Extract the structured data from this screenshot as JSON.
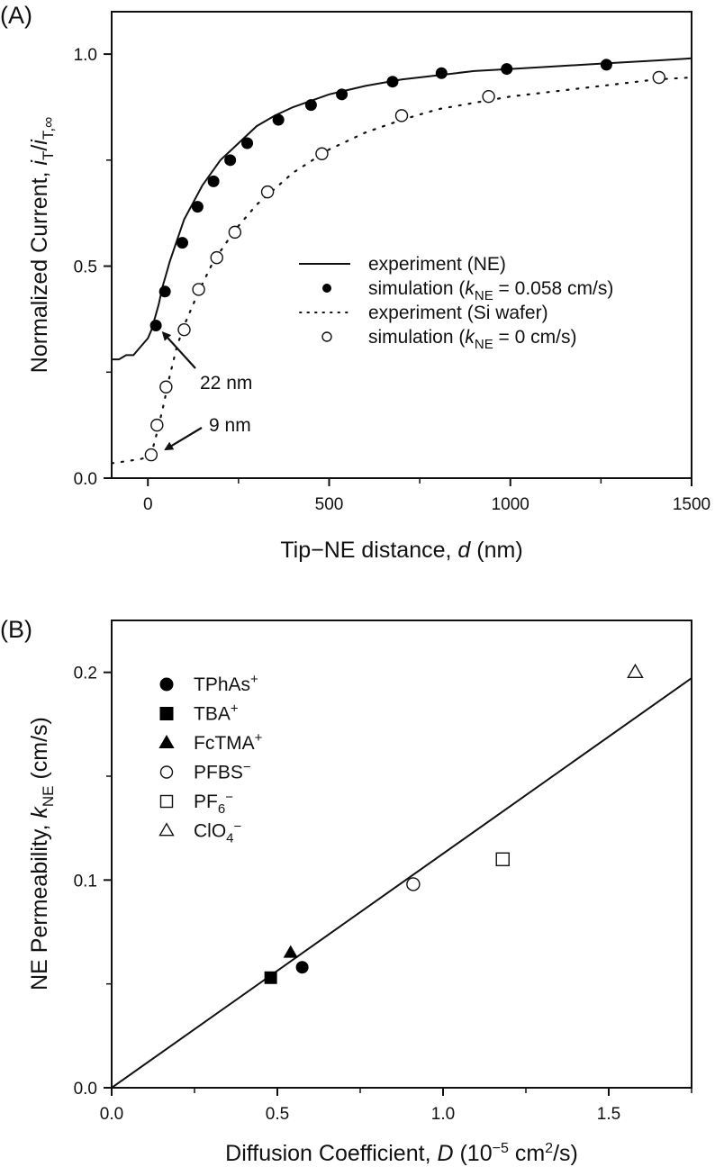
{
  "chart_data": [
    {
      "panel_label": "(A)",
      "type": "line",
      "xlabel_parts": [
        "Tip−NE distance, ",
        "d",
        " (nm)"
      ],
      "ylabel_parts": [
        "Normalized Current, ",
        "i",
        "T",
        "/",
        "i",
        "T,∞"
      ],
      "xlim": [
        -100,
        1500
      ],
      "ylim": [
        0,
        1.1
      ],
      "xticks": [
        0,
        500,
        1000,
        1500
      ],
      "xtick_labels": [
        "0",
        "500",
        "1000",
        "1500"
      ],
      "xminor": [
        250,
        750,
        1250
      ],
      "yticks": [
        0.0,
        0.5,
        1.0
      ],
      "ytick_labels": [
        "0.0",
        "0.5",
        "1.0"
      ],
      "yminor": [
        0.25,
        0.75
      ],
      "grid": false,
      "legend_position": "center-right",
      "series": [
        {
          "name": "experiment (NE)",
          "legend_parts": [
            "experiment (NE)"
          ],
          "style": "solid-line",
          "x": [
            -100,
            -80,
            -60,
            -40,
            -20,
            0,
            10,
            20,
            30,
            40,
            50,
            60,
            80,
            100,
            125,
            150,
            175,
            200,
            250,
            300,
            350,
            400,
            450,
            500,
            600,
            700,
            800,
            900,
            1000,
            1100,
            1200,
            1300,
            1400,
            1500
          ],
          "y": [
            0.28,
            0.28,
            0.29,
            0.29,
            0.31,
            0.33,
            0.35,
            0.38,
            0.41,
            0.45,
            0.48,
            0.51,
            0.56,
            0.61,
            0.65,
            0.69,
            0.72,
            0.75,
            0.79,
            0.83,
            0.855,
            0.875,
            0.89,
            0.905,
            0.925,
            0.94,
            0.95,
            0.96,
            0.965,
            0.97,
            0.975,
            0.98,
            0.985,
            0.99
          ]
        },
        {
          "name": "simulation (kNE = 0.058 cm/s)",
          "legend_parts": [
            "simulation (",
            "k",
            "NE",
            " = 0.058 cm/s)"
          ],
          "style": "filled-circle",
          "x": [
            22,
            47,
            95,
            137,
            181,
            227,
            274,
            360,
            450,
            535,
            675,
            810,
            990,
            1265
          ],
          "y": [
            0.36,
            0.44,
            0.555,
            0.64,
            0.7,
            0.75,
            0.79,
            0.845,
            0.88,
            0.905,
            0.935,
            0.955,
            0.965,
            0.975
          ]
        },
        {
          "name": "experiment (Si wafer)",
          "legend_parts": [
            "experiment (Si wafer)"
          ],
          "style": "dotted-line",
          "x": [
            -100,
            -60,
            -20,
            0,
            10,
            20,
            40,
            60,
            80,
            100,
            140,
            180,
            240,
            300,
            400,
            500,
            600,
            700,
            800,
            900,
            1000,
            1100,
            1200,
            1300,
            1400,
            1500
          ],
          "y": [
            0.035,
            0.04,
            0.045,
            0.05,
            0.06,
            0.09,
            0.16,
            0.24,
            0.31,
            0.36,
            0.44,
            0.51,
            0.585,
            0.645,
            0.72,
            0.775,
            0.815,
            0.845,
            0.87,
            0.885,
            0.9,
            0.91,
            0.92,
            0.93,
            0.94,
            0.945
          ]
        },
        {
          "name": "simulation (kNE = 0 cm/s)",
          "legend_parts": [
            "simulation (",
            "k",
            "NE",
            " = 0 cm/s)"
          ],
          "style": "open-circle",
          "x": [
            9,
            25,
            50,
            100,
            140,
            190,
            240,
            330,
            480,
            700,
            940,
            1410
          ],
          "y": [
            0.055,
            0.125,
            0.215,
            0.35,
            0.445,
            0.52,
            0.58,
            0.675,
            0.765,
            0.855,
            0.9,
            0.945
          ]
        }
      ],
      "annotations": [
        {
          "text": "22 nm",
          "points_to": {
            "x": 22,
            "y": 0.36
          }
        },
        {
          "text": "9 nm",
          "points_to": {
            "x": 9,
            "y": 0.055
          }
        }
      ]
    },
    {
      "panel_label": "(B)",
      "type": "scatter",
      "xlabel_parts": [
        "Diffusion Coefficient, ",
        "D",
        " (10",
        "−5",
        " cm",
        "2",
        "/s)"
      ],
      "ylabel_parts": [
        "NE Permeability, ",
        "k",
        "NE",
        " (cm/s)"
      ],
      "xlim": [
        0,
        1.75
      ],
      "ylim": [
        0,
        0.225
      ],
      "xticks": [
        0.0,
        0.5,
        1.0,
        1.5
      ],
      "xtick_labels": [
        "0.0",
        "0.5",
        "1.0",
        "1.5"
      ],
      "xminor": [
        0.25,
        0.75,
        1.25,
        1.75
      ],
      "yticks": [
        0.0,
        0.1,
        0.2
      ],
      "ytick_labels": [
        "0.0",
        "0.1",
        "0.2"
      ],
      "yminor": [
        0.05,
        0.15
      ],
      "grid": false,
      "legend_position": "top-left",
      "fit_line": {
        "slope": 0.1127,
        "intercept": 0,
        "x_range": [
          0,
          1.75
        ]
      },
      "series": [
        {
          "name": "TPhAs+",
          "label_base": "TPhAs",
          "label_sup": "+",
          "label_sub": "",
          "marker": "filled-circle",
          "x": [
            0.575
          ],
          "y": [
            0.058
          ]
        },
        {
          "name": "TBA+",
          "label_base": "TBA",
          "label_sup": "+",
          "label_sub": "",
          "marker": "filled-square",
          "x": [
            0.48
          ],
          "y": [
            0.053
          ]
        },
        {
          "name": "FcTMA+",
          "label_base": "FcTMA",
          "label_sup": "+",
          "label_sub": "",
          "marker": "filled-triangle",
          "x": [
            0.54
          ],
          "y": [
            0.065
          ]
        },
        {
          "name": "PFBS−",
          "label_base": "PFBS",
          "label_sup": "−",
          "label_sub": "",
          "marker": "open-circle",
          "x": [
            0.91
          ],
          "y": [
            0.098
          ]
        },
        {
          "name": "PF6−",
          "label_base": "PF",
          "label_sup": "−",
          "label_sub": "6",
          "marker": "open-square",
          "x": [
            1.18
          ],
          "y": [
            0.11
          ]
        },
        {
          "name": "ClO4−",
          "label_base": "ClO",
          "label_sup": "−",
          "label_sub": "4",
          "marker": "open-triangle",
          "x": [
            1.58
          ],
          "y": [
            0.2
          ]
        }
      ]
    }
  ]
}
